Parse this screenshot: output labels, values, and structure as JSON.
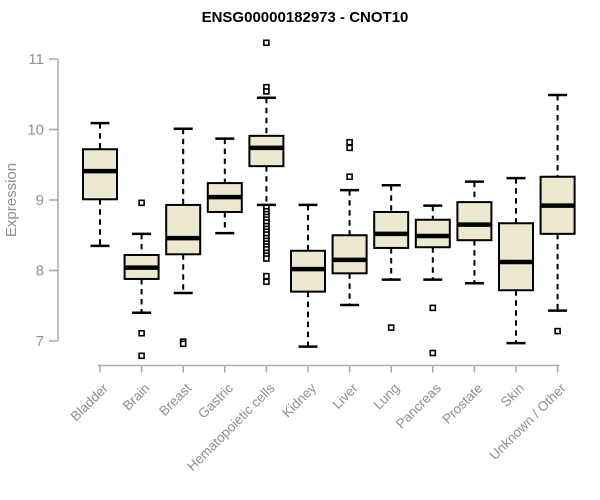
{
  "chart_data": {
    "type": "boxplot",
    "title": "ENSG00000182973 - CNOT10",
    "ylabel": "Expression",
    "xlabel": "",
    "ylim": [
      6.7,
      11.3
    ],
    "yticks": [
      7,
      8,
      9,
      10,
      11
    ],
    "grid": false,
    "legend": "none",
    "categories": [
      "Bladder",
      "Brain",
      "Breast",
      "Gastric",
      "Hematopoietic cells",
      "Kidney",
      "Liver",
      "Lung",
      "Pancreas",
      "Prostate",
      "Skin",
      "Unknown / Other"
    ],
    "series": [
      {
        "name": "Bladder",
        "whisker_low": 8.35,
        "q1": 9.01,
        "median": 9.41,
        "q3": 9.72,
        "whisker_high": 10.09,
        "outliers": []
      },
      {
        "name": "Brain",
        "whisker_low": 7.4,
        "q1": 7.88,
        "median": 8.04,
        "q3": 8.22,
        "whisker_high": 8.52,
        "outliers": [
          8.96,
          7.11,
          6.79
        ]
      },
      {
        "name": "Breast",
        "whisker_low": 7.68,
        "q1": 8.23,
        "median": 8.46,
        "q3": 8.93,
        "whisker_high": 10.01,
        "outliers": [
          6.99,
          6.96
        ]
      },
      {
        "name": "Gastric",
        "whisker_low": 8.53,
        "q1": 8.83,
        "median": 9.04,
        "q3": 9.24,
        "whisker_high": 9.87,
        "outliers": []
      },
      {
        "name": "Hematopoietic cells",
        "whisker_low": 8.93,
        "q1": 9.48,
        "median": 9.74,
        "q3": 9.91,
        "whisker_high": 10.45,
        "outliers": [
          11.23,
          10.6,
          10.54,
          8.89,
          8.84,
          8.8,
          8.76,
          8.72,
          8.68,
          8.63,
          8.59,
          8.55,
          8.51,
          8.46,
          8.42,
          8.38,
          8.34,
          8.3,
          8.25,
          8.21,
          8.17,
          7.92,
          7.84
        ]
      },
      {
        "name": "Kidney",
        "whisker_low": 6.92,
        "q1": 7.7,
        "median": 8.02,
        "q3": 8.28,
        "whisker_high": 8.93,
        "outliers": []
      },
      {
        "name": "Liver",
        "whisker_low": 7.51,
        "q1": 7.96,
        "median": 8.15,
        "q3": 8.5,
        "whisker_high": 9.14,
        "outliers": [
          9.82,
          9.74,
          9.33
        ]
      },
      {
        "name": "Lung",
        "whisker_low": 7.87,
        "q1": 8.32,
        "median": 8.52,
        "q3": 8.83,
        "whisker_high": 9.21,
        "outliers": [
          7.19
        ]
      },
      {
        "name": "Pancreas",
        "whisker_low": 7.87,
        "q1": 8.33,
        "median": 8.49,
        "q3": 8.72,
        "whisker_high": 8.92,
        "outliers": [
          7.47,
          6.83
        ]
      },
      {
        "name": "Prostate",
        "whisker_low": 7.82,
        "q1": 8.43,
        "median": 8.65,
        "q3": 8.97,
        "whisker_high": 9.26,
        "outliers": []
      },
      {
        "name": "Skin",
        "whisker_low": 6.97,
        "q1": 7.72,
        "median": 8.12,
        "q3": 8.67,
        "whisker_high": 9.31,
        "outliers": []
      },
      {
        "name": "Unknown / Other",
        "whisker_low": 7.43,
        "q1": 8.52,
        "median": 8.92,
        "q3": 9.33,
        "whisker_high": 10.49,
        "outliers": [
          7.14
        ]
      }
    ],
    "colors": {
      "box_fill": "#EDE8D0",
      "box_stroke": "#000000",
      "median": "#000000",
      "whisker": "#000000",
      "outlier_stroke": "#000000",
      "outlier_fill": "#FFFFFF",
      "axis_line": "#AAAAAA",
      "axis_text": "#909090",
      "title": "#000000",
      "background": "#FFFFFF"
    }
  }
}
